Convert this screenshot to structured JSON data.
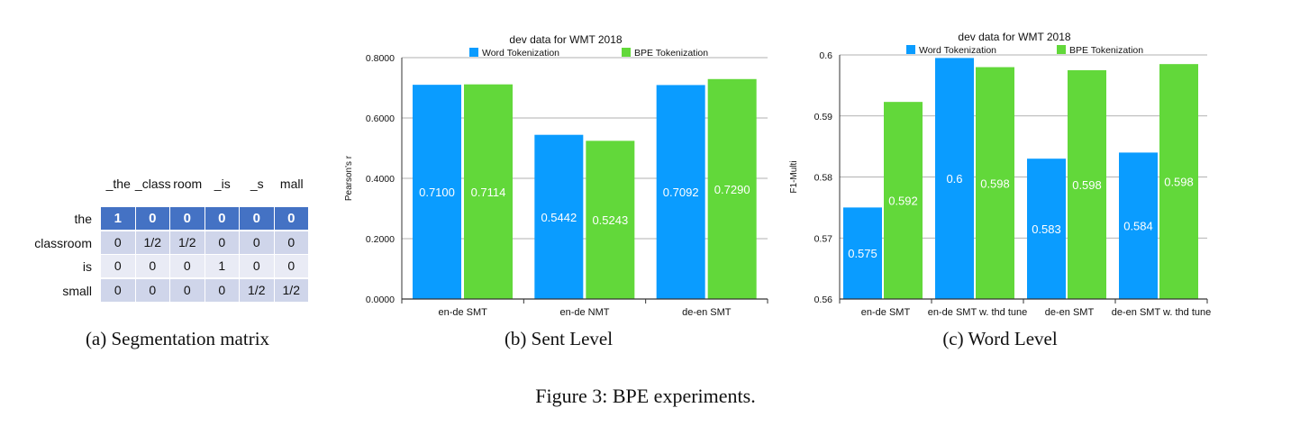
{
  "segmentation_matrix": {
    "columns": [
      "_the",
      "_class",
      "room",
      "_is",
      "_s",
      "mall"
    ],
    "rows": [
      {
        "label": "the",
        "cells": [
          "1",
          "0",
          "0",
          "0",
          "0",
          "0"
        ]
      },
      {
        "label": "classroom",
        "cells": [
          "0",
          "1/2",
          "1/2",
          "0",
          "0",
          "0"
        ]
      },
      {
        "label": "is",
        "cells": [
          "0",
          "0",
          "0",
          "1",
          "0",
          "0"
        ]
      },
      {
        "label": "small",
        "cells": [
          "0",
          "0",
          "0",
          "0",
          "1/2",
          "1/2"
        ]
      }
    ],
    "header_color": "#4472c4",
    "band_colors": [
      "#cfd5ea",
      "#e9ebf5"
    ]
  },
  "captions": {
    "a": "(a)  Segmentation matrix",
    "b": "(b)  Sent Level",
    "c": "(c)  Word Level",
    "figure": "Figure 3: BPE experiments."
  },
  "colors": {
    "word": "#0a9cff",
    "bpe": "#62d83a"
  },
  "chart_data": [
    {
      "type": "bar",
      "title": "dev data for WMT 2018",
      "ylabel": "Pearson's r",
      "xlabel": "",
      "categories": [
        "en-de SMT",
        "en-de NMT",
        "de-en SMT"
      ],
      "series": [
        {
          "name": "Word Tokenization",
          "values": [
            0.71,
            0.5442,
            0.7092
          ],
          "labels": [
            "0.7100",
            "0.5442",
            "0.7092"
          ]
        },
        {
          "name": "BPE Tokenization",
          "values": [
            0.7114,
            0.5243,
            0.729
          ],
          "labels": [
            "0.7114",
            "0.5243",
            "0.7290"
          ]
        }
      ],
      "ylim": [
        0,
        0.8
      ],
      "yticks": [
        0,
        0.2,
        0.4,
        0.6,
        0.8
      ],
      "ytick_labels": [
        "0.0000",
        "0.2000",
        "0.4000",
        "0.6000",
        "0.8000"
      ],
      "grid": true,
      "legend": "top"
    },
    {
      "type": "bar",
      "title": "dev data for WMT 2018",
      "ylabel": "F1-Multi",
      "xlabel": "",
      "categories": [
        "en-de SMT",
        "en-de SMT w. thd tune",
        "de-en SMT",
        "de-en SMT w. thd tune"
      ],
      "series": [
        {
          "name": "Word Tokenization",
          "values": [
            0.575,
            0.5995,
            0.583,
            0.584
          ],
          "labels": [
            "0.575",
            "0.6",
            "0.583",
            "0.584"
          ]
        },
        {
          "name": "BPE Tokenization",
          "values": [
            0.5923,
            0.598,
            0.5975,
            0.5985
          ],
          "labels": [
            "0.592",
            "0.598",
            "0.598",
            "0.598"
          ]
        }
      ],
      "ylim": [
        0.56,
        0.6
      ],
      "yticks": [
        0.56,
        0.57,
        0.58,
        0.59,
        0.6
      ],
      "ytick_labels": [
        "0.56",
        "0.57",
        "0.58",
        "0.59",
        "0.6"
      ],
      "grid": true,
      "legend": "top"
    }
  ]
}
